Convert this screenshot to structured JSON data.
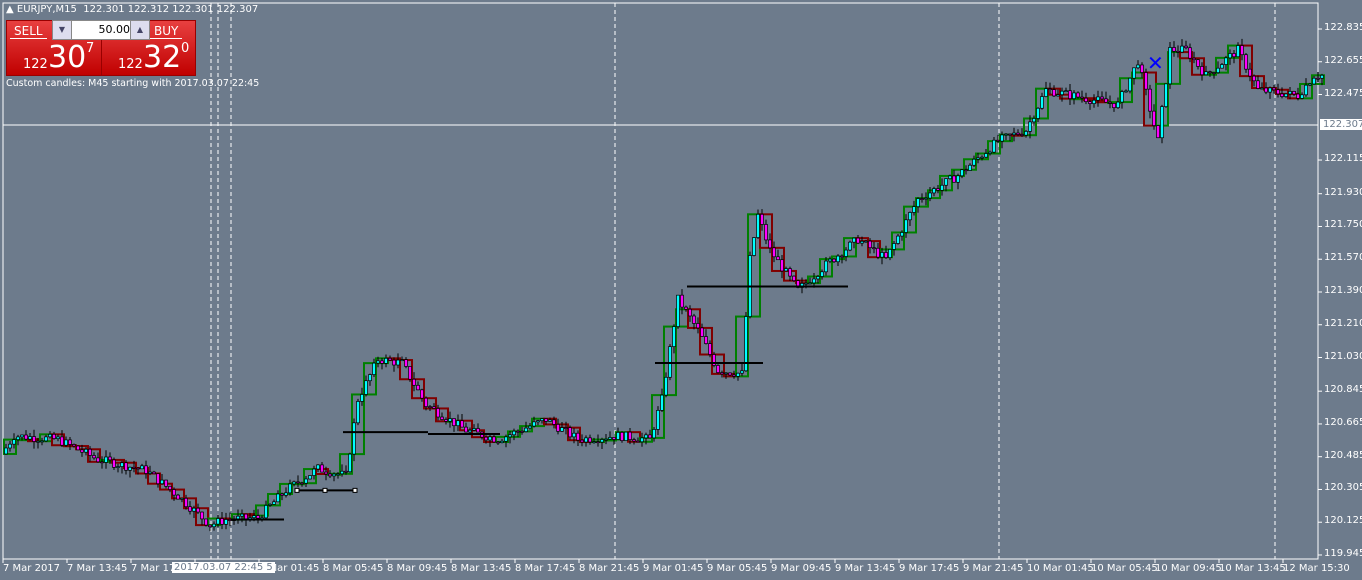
{
  "header": {
    "title": "EURJPY,M15",
    "ohlc": "122.301 122.312 122.301 122.307"
  },
  "trade_panel": {
    "sell_label": "SELL",
    "buy_label": "BUY",
    "lot": "50.00",
    "sell_price": {
      "prefix": "122",
      "big": "30",
      "sup": "7"
    },
    "buy_price": {
      "prefix": "122",
      "big": "32",
      "sup": "0"
    }
  },
  "indicator_text": "Custom candles: M45 starting with 2017.03.07 22:45",
  "colors": {
    "background": "#6d7b8c",
    "bull_body": "#00ffff",
    "bear_body": "#ff00ff",
    "m45_bull": "#008000",
    "m45_bear": "#800000",
    "marker": "#0000ff"
  },
  "chart_data": {
    "type": "candlestick",
    "symbol": "EURJPY",
    "timeframe": "M15",
    "overlay_timeframe": "M45",
    "current_price": "122.307",
    "price_ticks": [
      "122.835",
      "122.655",
      "122.475",
      "122.115",
      "121.930",
      "121.750",
      "121.570",
      "121.390",
      "121.210",
      "121.030",
      "120.845",
      "120.665",
      "120.485",
      "120.305",
      "120.125",
      "119.945"
    ],
    "ylim": [
      119.945,
      122.835
    ],
    "time_ticks": [
      "7 Mar 2017",
      "7 Mar 13:45",
      "7 Mar 17:45",
      "",
      "8 Mar 01:45",
      "8 Mar 05:45",
      "8 Mar 09:45",
      "8 Mar 13:45",
      "8 Mar 17:45",
      "8 Mar 21:45",
      "9 Mar 01:45",
      "9 Mar 05:45",
      "9 Mar 09:45",
      "9 Mar 13:45",
      "9 Mar 17:45",
      "9 Mar 21:45",
      "10 Mar 01:45",
      "10 Mar 05:45",
      "10 Mar 09:45",
      "10 Mar 13:45",
      "12 Mar 15:30"
    ],
    "crosshair_time": "2017.03.07 22:45 5",
    "price_path_bar_price": [
      [
        0,
        120.5
      ],
      [
        3,
        120.6
      ],
      [
        14,
        120.58
      ],
      [
        24,
        120.47
      ],
      [
        36,
        120.41
      ],
      [
        44,
        120.27
      ],
      [
        52,
        120.11
      ],
      [
        56,
        120.14
      ],
      [
        64,
        120.15
      ],
      [
        71,
        120.3
      ],
      [
        79,
        120.42
      ],
      [
        86,
        120.38
      ],
      [
        89,
        120.8
      ],
      [
        94,
        121.02
      ],
      [
        100,
        121.0
      ],
      [
        106,
        120.77
      ],
      [
        116,
        120.63
      ],
      [
        124,
        120.58
      ],
      [
        136,
        120.69
      ],
      [
        144,
        120.58
      ],
      [
        154,
        120.6
      ],
      [
        162,
        120.58
      ],
      [
        165,
        120.8
      ],
      [
        169,
        121.35
      ],
      [
        174,
        121.18
      ],
      [
        179,
        120.96
      ],
      [
        185,
        120.94
      ],
      [
        187,
        121.57
      ],
      [
        189,
        121.81
      ],
      [
        192,
        121.62
      ],
      [
        199,
        121.4
      ],
      [
        206,
        121.54
      ],
      [
        214,
        121.68
      ],
      [
        221,
        121.57
      ],
      [
        229,
        121.9
      ],
      [
        239,
        122.03
      ],
      [
        249,
        122.22
      ],
      [
        256,
        122.28
      ],
      [
        261,
        122.5
      ],
      [
        274,
        122.44
      ],
      [
        279,
        122.42
      ],
      [
        284,
        122.66
      ],
      [
        289,
        122.22
      ],
      [
        292,
        122.72
      ],
      [
        296,
        122.72
      ],
      [
        301,
        122.58
      ],
      [
        309,
        122.72
      ],
      [
        314,
        122.5
      ],
      [
        324,
        122.47
      ],
      [
        328,
        122.58
      ]
    ],
    "horizontal_levels": [
      {
        "price": 120.62
      },
      {
        "price": 120.61
      },
      {
        "price": 120.3
      },
      {
        "price": 120.14
      },
      {
        "price": 121.42
      },
      {
        "price": 121.0
      }
    ]
  }
}
